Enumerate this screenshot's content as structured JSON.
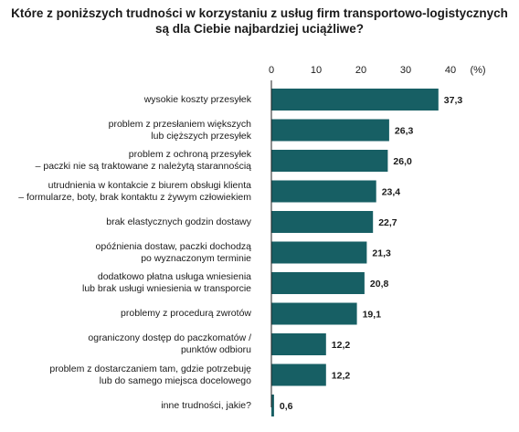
{
  "colors": {
    "bar": "#175F64",
    "axis": "#222222",
    "grid": "#d6d6d6"
  },
  "chart_data": {
    "type": "bar",
    "orientation": "horizontal",
    "title_lines": [
      "Które z poniższych trudności w korzystaniu z usług firm transportowo-logistycznych",
      "są dla Ciebie najbardziej uciążliwe?"
    ],
    "unit_label": "(%)",
    "xlim": [
      0,
      40
    ],
    "xticks": [
      "0",
      "10",
      "20",
      "30",
      "40"
    ],
    "grid": false,
    "categories": [
      [
        "wysokie koszty przesyłek"
      ],
      [
        "problem z przesłaniem większych",
        "lub cięższych przesyłek"
      ],
      [
        "problem z ochroną przesyłek",
        "– paczki nie są traktowane z należytą starannością"
      ],
      [
        "utrudnienia w kontakcie z biurem obsługi klienta",
        "– formularze, boty, brak kontaktu z żywym człowiekiem"
      ],
      [
        "brak elastycznych godzin dostawy"
      ],
      [
        "opóźnienia dostaw, paczki dochodzą",
        "po wyznaczonym terminie"
      ],
      [
        "dodatkowo płatna usługa wniesienia",
        "lub brak usługi wniesienia w transporcie"
      ],
      [
        "problemy z procedurą zwrotów"
      ],
      [
        "ograniczony dostęp do paczkomatów /",
        "punktów odbioru"
      ],
      [
        "problem z dostarczaniem tam, gdzie potrzebuję",
        "lub do samego miejsca docelowego"
      ],
      [
        "inne trudności, jakie?"
      ]
    ],
    "values": [
      37.3,
      26.3,
      26.0,
      23.4,
      22.7,
      21.3,
      20.8,
      19.1,
      12.2,
      12.2,
      0.6
    ],
    "value_labels": [
      "37,3",
      "26,3",
      "26,0",
      "23,4",
      "22,7",
      "21,3",
      "20,8",
      "19,1",
      "12,2",
      "12,2",
      "0,6"
    ]
  }
}
